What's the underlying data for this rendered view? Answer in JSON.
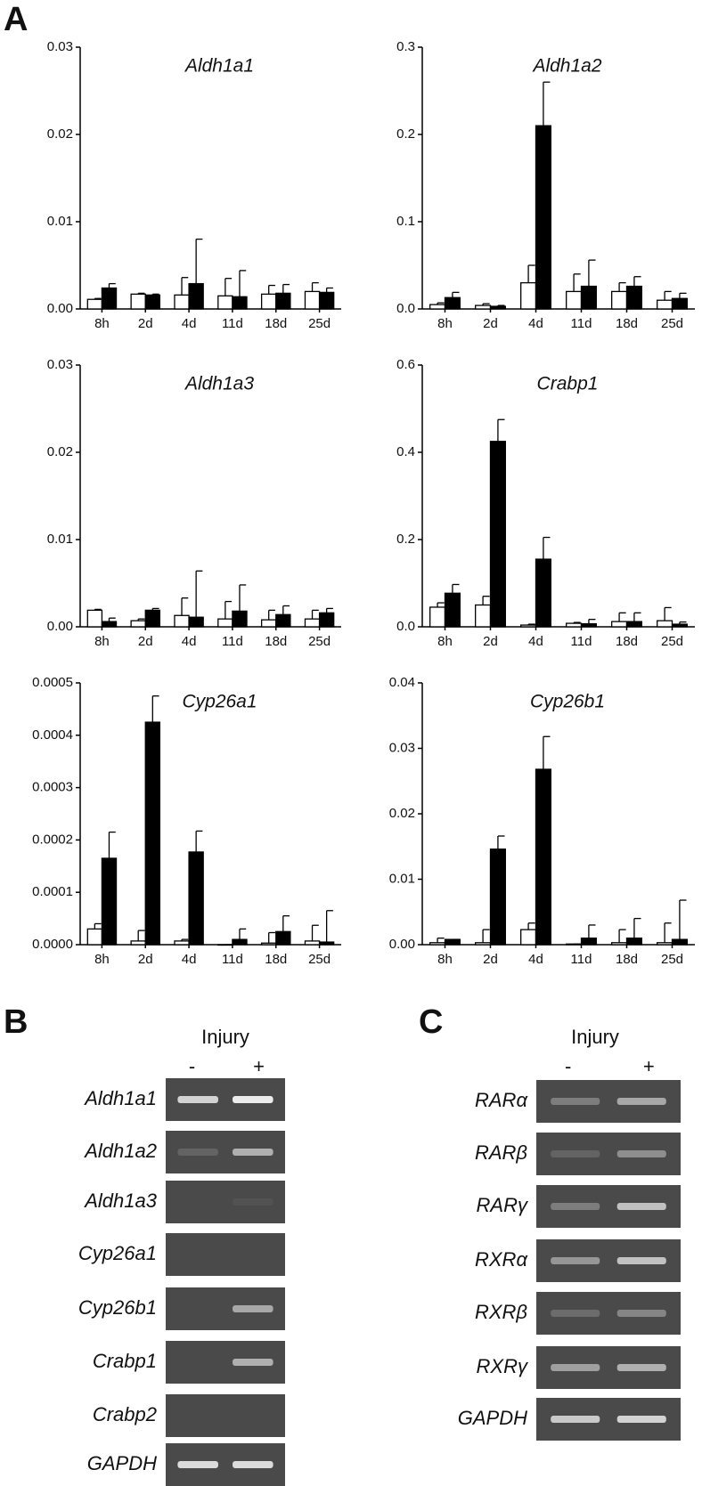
{
  "panel_a": "A",
  "chart_data": [
    {
      "type": "bar",
      "title": "Aldh1a1",
      "categories": [
        "8h",
        "2d",
        "4d",
        "11d",
        "18d",
        "25d"
      ],
      "series": [
        {
          "color": "#ffffff",
          "values": [
            0.0011,
            0.0017,
            0.0016,
            0.0015,
            0.0017,
            0.002
          ],
          "errors": [
            0.0001,
            0.0001,
            0.002,
            0.002,
            0.001,
            0.001
          ]
        },
        {
          "color": "#000000",
          "values": [
            0.0024,
            0.0016,
            0.0029,
            0.0014,
            0.0018,
            0.0019
          ],
          "errors": [
            0.0005,
            0.0001,
            0.0051,
            0.003,
            0.001,
            0.0005
          ]
        }
      ],
      "ylim": [
        0,
        0.03
      ],
      "yticks": [
        {
          "value": 0,
          "label": "0.00"
        },
        0.01,
        0.02,
        0.03
      ]
    },
    {
      "type": "bar",
      "title": "Aldh1a2",
      "categories": [
        "8h",
        "2d",
        "4d",
        "11d",
        "18d",
        "25d"
      ],
      "series": [
        {
          "color": "#ffffff",
          "values": [
            0.005,
            0.004,
            0.03,
            0.02,
            0.02,
            0.01
          ],
          "errors": [
            0.002,
            0.002,
            0.02,
            0.02,
            0.01,
            0.01
          ]
        },
        {
          "color": "#000000",
          "values": [
            0.013,
            0.003,
            0.21,
            0.026,
            0.026,
            0.012
          ],
          "errors": [
            0.006,
            0.001,
            0.05,
            0.03,
            0.011,
            0.006
          ]
        }
      ],
      "ylim": [
        0,
        0.3
      ],
      "yticks": [
        {
          "value": 0,
          "label": "0.0"
        },
        0.1,
        0.2,
        0.3
      ]
    },
    {
      "type": "bar",
      "title": "Aldh1a3",
      "categories": [
        "8h",
        "2d",
        "4d",
        "11d",
        "18d",
        "25d"
      ],
      "series": [
        {
          "color": "#ffffff",
          "values": [
            0.0019,
            0.0007,
            0.0013,
            0.0009,
            0.0008,
            0.0009
          ],
          "errors": [
            0.0001,
            0.0002,
            0.002,
            0.002,
            0.0011,
            0.001
          ]
        },
        {
          "color": "#000000",
          "values": [
            0.0006,
            0.0019,
            0.0011,
            0.0018,
            0.0014,
            0.0016
          ],
          "errors": [
            0.0004,
            0.0002,
            0.0053,
            0.003,
            0.001,
            0.0005
          ]
        }
      ],
      "ylim": [
        0,
        0.03
      ],
      "yticks": [
        {
          "value": 0,
          "label": "0.00"
        },
        0.01,
        0.02,
        0.03
      ]
    },
    {
      "type": "bar",
      "title": "Crabp1",
      "categories": [
        "8h",
        "2d",
        "4d",
        "11d",
        "18d",
        "25d"
      ],
      "series": [
        {
          "color": "#ffffff",
          "values": [
            0.045,
            0.05,
            0.004,
            0.008,
            0.012,
            0.014
          ],
          "errors": [
            0.01,
            0.02,
            0.002,
            0.002,
            0.02,
            0.03
          ]
        },
        {
          "color": "#000000",
          "values": [
            0.077,
            0.425,
            0.155,
            0.007,
            0.012,
            0.006
          ],
          "errors": [
            0.02,
            0.05,
            0.05,
            0.01,
            0.02,
            0.005
          ]
        }
      ],
      "ylim": [
        0,
        0.6
      ],
      "yticks": [
        {
          "value": 0,
          "label": "0.0"
        },
        0.2,
        0.4,
        0.6
      ]
    },
    {
      "type": "bar",
      "title": "Cyp26a1",
      "categories": [
        "8h",
        "2d",
        "4d",
        "11d",
        "18d",
        "25d"
      ],
      "series": [
        {
          "color": "#ffffff",
          "values": [
            3e-05,
            7e-06,
            7e-06,
            0,
            3e-06,
            7e-06
          ],
          "errors": [
            1e-05,
            2e-05,
            3e-06,
            0,
            2e-05,
            3e-05
          ]
        },
        {
          "color": "#000000",
          "values": [
            0.000165,
            0.000425,
            0.000177,
            1e-05,
            2.5e-05,
            5e-06
          ],
          "errors": [
            5e-05,
            5e-05,
            4e-05,
            2e-05,
            3e-05,
            6e-05
          ]
        }
      ],
      "ylim": [
        0,
        0.0005
      ],
      "yticks": [
        {
          "value": 0,
          "label": "0.0000"
        },
        0.0001,
        0.0002,
        0.0003,
        0.0004,
        0.0005
      ]
    },
    {
      "type": "bar",
      "title": "Cyp26b1",
      "categories": [
        "8h",
        "2d",
        "4d",
        "11d",
        "18d",
        "25d"
      ],
      "series": [
        {
          "color": "#ffffff",
          "values": [
            0.0003,
            0.0003,
            0.0023,
            0.0001,
            0.0003,
            0.0003
          ],
          "errors": [
            0.0007,
            0.002,
            0.001,
            0,
            0.002,
            0.003
          ]
        },
        {
          "color": "#000000",
          "values": [
            0.0008,
            0.0146,
            0.0268,
            0.001,
            0.001,
            0.0008
          ],
          "errors": [
            0,
            0.002,
            0.005,
            0.002,
            0.003,
            0.006
          ]
        }
      ],
      "ylim": [
        0,
        0.04
      ],
      "yticks": [
        {
          "value": 0,
          "label": "0.00"
        },
        0.01,
        0.02,
        0.03,
        0.04
      ]
    }
  ],
  "gels": [
    {
      "letter": "B",
      "header": "Injury",
      "lanes": [
        "-",
        "+"
      ],
      "rows": [
        "Aldh1a1",
        "Aldh1a2",
        "Aldh1a3",
        "Cyp26a1",
        "Cyp26b1",
        "Crabp1",
        "Crabp2",
        "GAPDH"
      ]
    },
    {
      "letter": "C",
      "header": "Injury",
      "lanes": [
        "-",
        "+"
      ],
      "rows": [
        "RARα",
        "RARβ",
        "RARγ",
        "RXRα",
        "RXRβ",
        "RXRγ",
        "GAPDH"
      ]
    }
  ]
}
